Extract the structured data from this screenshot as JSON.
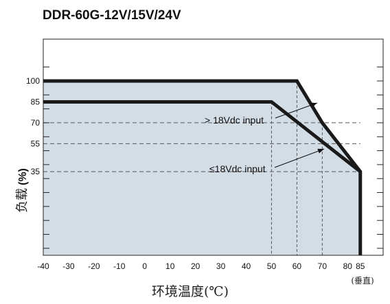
{
  "chart_data": {
    "type": "line",
    "title": "DDR-60G-12V/15V/24V",
    "xlabel": "环境温度(℃)",
    "ylabel_cjk": "负载",
    "ylabel_unit": "(%)",
    "x_ticks": [
      "-40",
      "-30",
      "-20",
      "-10",
      "0",
      "10",
      "20",
      "30",
      "40",
      "50",
      "60",
      "70",
      "80",
      "85"
    ],
    "x_tick_note": "(垂直)",
    "y_ticks": [
      "100",
      "85",
      "70",
      "55",
      "35"
    ],
    "xlim": [
      -40,
      94
    ],
    "ylim": [
      -25,
      130
    ],
    "y_minor_ticks": [
      -20,
      -10,
      0,
      10,
      20,
      30,
      40,
      50,
      60,
      70,
      80,
      90,
      100,
      110
    ],
    "series": [
      {
        "name": "> 18Vdc input",
        "points": [
          [
            -40,
            100
          ],
          [
            60,
            100
          ],
          [
            70,
            70
          ],
          [
            85,
            35
          ],
          [
            85,
            -25
          ]
        ]
      },
      {
        "name": "≤18Vdc input",
        "points": [
          [
            -40,
            85
          ],
          [
            50,
            85
          ],
          [
            85,
            35
          ]
        ]
      }
    ],
    "reference_lines": {
      "horizontal": [
        70,
        55,
        35
      ],
      "vertical": [
        50,
        60,
        70
      ]
    },
    "shaded_region": "under > 18Vdc input curve",
    "colors": {
      "curve": "#1a1a1a",
      "fill": "#d3dde6",
      "grid": "#555555"
    }
  }
}
